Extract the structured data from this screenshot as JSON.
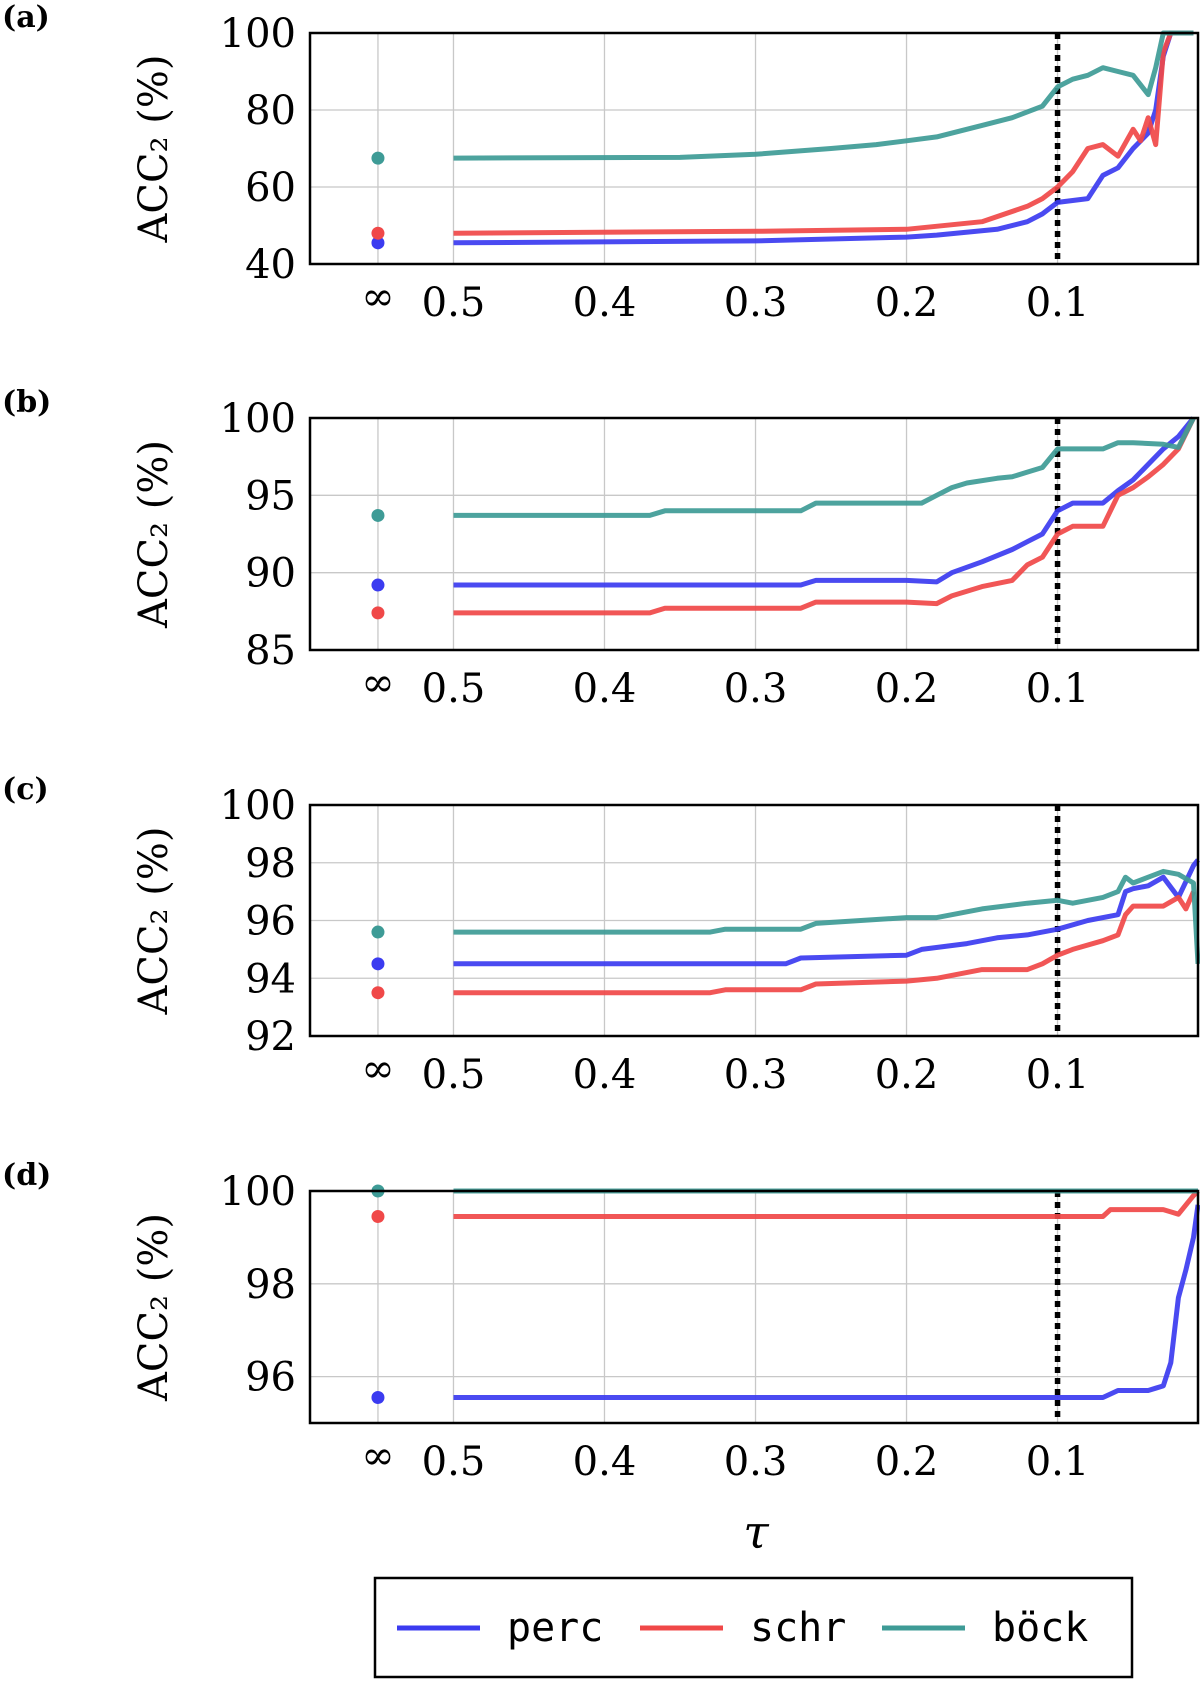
{
  "figure": {
    "xlabel": "τ",
    "ylabel": "ACC₂ (%)"
  },
  "colors": {
    "perc": "#3b3bf0",
    "schr": "#f04848",
    "bock": "#3e9b96"
  },
  "legend": {
    "entries": [
      {
        "key": "perc",
        "label": "perc"
      },
      {
        "key": "schr",
        "label": "schr"
      },
      {
        "key": "bock",
        "label": "böck"
      }
    ]
  },
  "chart_data": [
    {
      "type": "line",
      "panel_label": "(a)",
      "ylabel": "ACC₂ (%)",
      "ylim": [
        40,
        100
      ],
      "yticks": [
        "40",
        "60",
        "80",
        "100"
      ],
      "xlim": [
        0.595,
        0.007
      ],
      "xticks": [
        "0.5",
        "0.4",
        "0.3",
        "0.2",
        "0.1"
      ],
      "inf_label": "∞",
      "inf_x": 0.55,
      "threshold": 0.1,
      "series": [
        {
          "name": "perc",
          "color_key": "perc",
          "inf_value": 45.5,
          "x": [
            0.5,
            0.3,
            0.2,
            0.18,
            0.14,
            0.12,
            0.11,
            0.1,
            0.08,
            0.07,
            0.06,
            0.05,
            0.04,
            0.035,
            0.03,
            0.025,
            0.02,
            0.01
          ],
          "y": [
            45.5,
            46,
            47,
            47.5,
            49,
            51,
            53,
            56,
            57,
            63,
            65,
            70,
            74,
            80,
            94,
            100,
            100,
            100
          ]
        },
        {
          "name": "schr",
          "color_key": "schr",
          "inf_value": 48,
          "x": [
            0.5,
            0.3,
            0.2,
            0.15,
            0.12,
            0.11,
            0.1,
            0.09,
            0.08,
            0.07,
            0.06,
            0.05,
            0.045,
            0.04,
            0.035,
            0.03,
            0.025,
            0.02,
            0.01
          ],
          "y": [
            48,
            48.5,
            49,
            51,
            55,
            57,
            60,
            64,
            70,
            71,
            68,
            75,
            72,
            78,
            71,
            95,
            100,
            100,
            100
          ]
        },
        {
          "name": "böck",
          "color_key": "bock",
          "inf_value": 67.5,
          "x": [
            0.5,
            0.35,
            0.3,
            0.25,
            0.22,
            0.2,
            0.18,
            0.15,
            0.13,
            0.11,
            0.1,
            0.09,
            0.08,
            0.07,
            0.06,
            0.05,
            0.04,
            0.035,
            0.03,
            0.025,
            0.02,
            0.01
          ],
          "y": [
            67.5,
            67.7,
            68.5,
            70,
            71,
            72,
            73,
            76,
            78,
            81,
            86,
            88,
            89,
            91,
            90,
            89,
            84,
            91,
            100,
            100,
            100,
            100
          ]
        }
      ]
    },
    {
      "type": "line",
      "panel_label": "(b)",
      "ylabel": "ACC₂ (%)",
      "ylim": [
        85,
        100
      ],
      "yticks": [
        "85",
        "90",
        "95",
        "100"
      ],
      "xlim": [
        0.595,
        0.007
      ],
      "xticks": [
        "0.5",
        "0.4",
        "0.3",
        "0.2",
        "0.1"
      ],
      "inf_label": "∞",
      "inf_x": 0.55,
      "threshold": 0.1,
      "series": [
        {
          "name": "perc",
          "color_key": "perc",
          "inf_value": 89.2,
          "x": [
            0.5,
            0.27,
            0.26,
            0.2,
            0.18,
            0.17,
            0.15,
            0.13,
            0.12,
            0.11,
            0.1,
            0.09,
            0.07,
            0.06,
            0.05,
            0.04,
            0.03,
            0.02,
            0.01
          ],
          "y": [
            89.2,
            89.2,
            89.5,
            89.5,
            89.4,
            90,
            90.7,
            91.5,
            92,
            92.5,
            94,
            94.5,
            94.5,
            95.3,
            96,
            97,
            98,
            98.8,
            100
          ]
        },
        {
          "name": "schr",
          "color_key": "schr",
          "inf_value": 87.4,
          "x": [
            0.5,
            0.37,
            0.36,
            0.27,
            0.26,
            0.2,
            0.18,
            0.17,
            0.15,
            0.13,
            0.12,
            0.11,
            0.1,
            0.09,
            0.07,
            0.06,
            0.05,
            0.04,
            0.03,
            0.02,
            0.01
          ],
          "y": [
            87.4,
            87.4,
            87.7,
            87.7,
            88.1,
            88.1,
            88,
            88.5,
            89.1,
            89.5,
            90.5,
            91,
            92.5,
            93,
            93,
            95,
            95.5,
            96.2,
            97,
            98,
            100
          ]
        },
        {
          "name": "böck",
          "color_key": "bock",
          "inf_value": 93.7,
          "x": [
            0.5,
            0.37,
            0.36,
            0.27,
            0.26,
            0.19,
            0.18,
            0.17,
            0.16,
            0.14,
            0.13,
            0.12,
            0.11,
            0.1,
            0.07,
            0.06,
            0.05,
            0.03,
            0.02,
            0.01
          ],
          "y": [
            93.7,
            93.7,
            94,
            94,
            94.5,
            94.5,
            95,
            95.5,
            95.8,
            96.1,
            96.2,
            96.5,
            96.8,
            98,
            98,
            98.4,
            98.4,
            98.3,
            98.1,
            100
          ]
        }
      ]
    },
    {
      "type": "line",
      "panel_label": "(c)",
      "ylabel": "ACC₂ (%)",
      "ylim": [
        92,
        100
      ],
      "yticks": [
        "92",
        "94",
        "96",
        "98",
        "100"
      ],
      "xlim": [
        0.595,
        0.007
      ],
      "xticks": [
        "0.5",
        "0.4",
        "0.3",
        "0.2",
        "0.1"
      ],
      "inf_label": "∞",
      "inf_x": 0.55,
      "threshold": 0.1,
      "series": [
        {
          "name": "perc",
          "color_key": "perc",
          "inf_value": 94.5,
          "x": [
            0.5,
            0.28,
            0.27,
            0.2,
            0.19,
            0.16,
            0.14,
            0.12,
            0.11,
            0.1,
            0.08,
            0.06,
            0.055,
            0.05,
            0.04,
            0.03,
            0.02,
            0.01,
            0.007
          ],
          "y": [
            94.5,
            94.5,
            94.7,
            94.8,
            95,
            95.2,
            95.4,
            95.5,
            95.6,
            95.7,
            96,
            96.2,
            97,
            97.1,
            97.2,
            97.5,
            96.8,
            97.9,
            98.1
          ]
        },
        {
          "name": "schr",
          "color_key": "schr",
          "inf_value": 93.5,
          "x": [
            0.5,
            0.33,
            0.32,
            0.27,
            0.26,
            0.2,
            0.18,
            0.15,
            0.12,
            0.11,
            0.1,
            0.09,
            0.07,
            0.06,
            0.055,
            0.05,
            0.04,
            0.03,
            0.02,
            0.015,
            0.01
          ],
          "y": [
            93.5,
            93.5,
            93.6,
            93.6,
            93.8,
            93.9,
            94,
            94.3,
            94.3,
            94.5,
            94.8,
            95,
            95.3,
            95.5,
            96.2,
            96.5,
            96.5,
            96.5,
            96.8,
            96.4,
            97
          ]
        },
        {
          "name": "böck",
          "color_key": "bock",
          "inf_value": 95.6,
          "x": [
            0.5,
            0.33,
            0.32,
            0.27,
            0.26,
            0.2,
            0.18,
            0.15,
            0.12,
            0.1,
            0.09,
            0.07,
            0.06,
            0.055,
            0.05,
            0.04,
            0.03,
            0.02,
            0.01,
            0.007
          ],
          "y": [
            95.6,
            95.6,
            95.7,
            95.7,
            95.9,
            96.1,
            96.1,
            96.4,
            96.6,
            96.7,
            96.6,
            96.8,
            97,
            97.5,
            97.3,
            97.5,
            97.7,
            97.6,
            97.3,
            94.5
          ]
        }
      ]
    },
    {
      "type": "line",
      "panel_label": "(d)",
      "ylabel": "ACC₂ (%)",
      "ylim": [
        95,
        100
      ],
      "yticks": [
        "96",
        "98",
        "100"
      ],
      "xlim": [
        0.595,
        0.007
      ],
      "xticks": [
        "0.5",
        "0.4",
        "0.3",
        "0.2",
        "0.1"
      ],
      "inf_label": "∞",
      "inf_x": 0.55,
      "threshold": 0.1,
      "series": [
        {
          "name": "perc",
          "color_key": "perc",
          "inf_value": 95.55,
          "x": [
            0.5,
            0.1,
            0.07,
            0.06,
            0.04,
            0.035,
            0.03,
            0.025,
            0.02,
            0.015,
            0.01,
            0.007
          ],
          "y": [
            95.55,
            95.55,
            95.55,
            95.7,
            95.7,
            95.75,
            95.8,
            96.3,
            97.7,
            98.3,
            99,
            99.7
          ]
        },
        {
          "name": "schr",
          "color_key": "schr",
          "inf_value": 99.45,
          "x": [
            0.5,
            0.07,
            0.065,
            0.03,
            0.025,
            0.02,
            0.01,
            0.007
          ],
          "y": [
            99.45,
            99.45,
            99.6,
            99.6,
            99.55,
            99.5,
            99.9,
            100
          ]
        },
        {
          "name": "böck",
          "color_key": "bock",
          "inf_value": 100,
          "x": [
            0.5,
            0.007
          ],
          "y": [
            100,
            100
          ]
        }
      ]
    }
  ]
}
